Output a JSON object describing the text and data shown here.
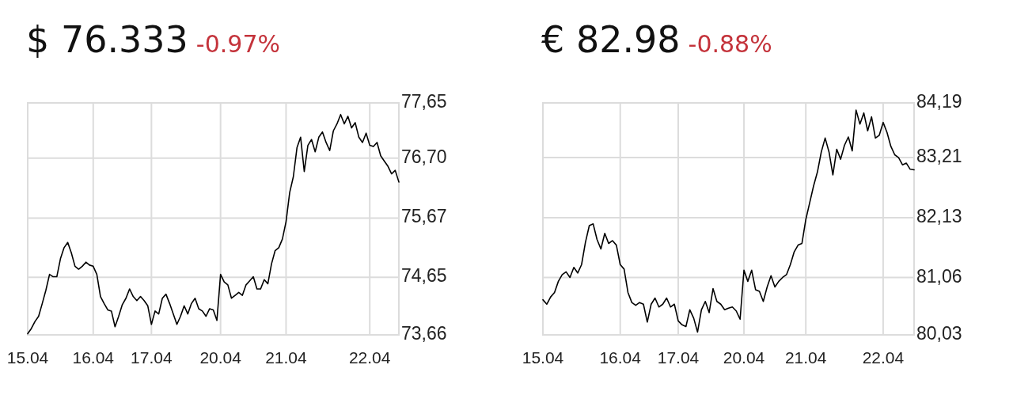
{
  "chart_data": [
    {
      "type": "line",
      "title": "$ 76.333",
      "subtitle": "-0.97%",
      "grid": true,
      "ylim": [
        73.66,
        77.65
      ],
      "categories": [
        "15.04",
        null,
        null,
        null,
        null,
        null,
        null,
        null,
        null,
        null,
        null,
        null,
        null,
        null,
        null,
        null,
        null,
        null,
        "16.04",
        null,
        null,
        null,
        null,
        null,
        null,
        null,
        null,
        null,
        null,
        null,
        null,
        null,
        null,
        null,
        "17.04",
        null,
        null,
        null,
        null,
        null,
        null,
        null,
        null,
        null,
        null,
        null,
        null,
        null,
        null,
        null,
        null,
        null,
        null,
        "20.04",
        null,
        null,
        null,
        null,
        null,
        null,
        null,
        null,
        null,
        null,
        null,
        null,
        null,
        null,
        null,
        null,
        null,
        "21.04",
        null,
        null,
        null,
        null,
        null,
        null,
        null,
        null,
        null,
        null,
        null,
        null,
        null,
        null,
        null,
        null,
        null,
        null,
        null,
        null,
        null,
        null,
        "22.04",
        null,
        null,
        null,
        null,
        null,
        null,
        null,
        null
      ],
      "yticks": [
        {
          "value": 73.66,
          "label": "73,66"
        },
        {
          "value": 74.65,
          "label": "74,65"
        },
        {
          "value": 75.67,
          "label": "75,67"
        },
        {
          "value": 76.7,
          "label": "76,70"
        },
        {
          "value": 77.65,
          "label": "77,65"
        }
      ],
      "series": [
        {
          "color": "#000000",
          "values": [
            73.68,
            73.77,
            73.89,
            73.98,
            74.2,
            74.43,
            74.7,
            74.66,
            74.66,
            74.97,
            75.16,
            75.25,
            75.07,
            74.84,
            74.79,
            74.84,
            74.91,
            74.86,
            74.84,
            74.7,
            74.32,
            74.2,
            74.09,
            74.07,
            73.8,
            73.98,
            74.18,
            74.29,
            74.45,
            74.32,
            74.25,
            74.32,
            74.25,
            74.16,
            73.84,
            74.07,
            74.02,
            74.29,
            74.36,
            74.2,
            74.02,
            73.84,
            73.98,
            74.16,
            74.02,
            74.2,
            74.29,
            74.11,
            74.07,
            73.98,
            74.11,
            74.09,
            73.91,
            74.7,
            74.57,
            74.52,
            74.29,
            74.34,
            74.39,
            74.34,
            74.52,
            74.59,
            74.66,
            74.45,
            74.45,
            74.61,
            74.54,
            74.88,
            75.11,
            75.16,
            75.31,
            75.61,
            76.11,
            76.38,
            76.88,
            77.06,
            76.47,
            76.92,
            77.02,
            76.81,
            77.06,
            77.15,
            76.97,
            76.83,
            77.17,
            77.29,
            77.45,
            77.29,
            77.42,
            77.22,
            77.31,
            77.06,
            76.97,
            77.13,
            76.92,
            76.9,
            76.97,
            76.74,
            76.65,
            76.56,
            76.43,
            76.49,
            76.29
          ]
        }
      ]
    },
    {
      "type": "line",
      "title": "€ 82.98",
      "subtitle": "-0.88%",
      "grid": true,
      "ylim": [
        80.03,
        84.19
      ],
      "categories": [
        "15.04",
        null,
        null,
        null,
        null,
        null,
        null,
        null,
        null,
        null,
        null,
        null,
        null,
        null,
        null,
        null,
        null,
        null,
        null,
        null,
        "16.04",
        null,
        null,
        null,
        null,
        null,
        null,
        null,
        null,
        null,
        null,
        null,
        null,
        null,
        null,
        "17.04",
        null,
        null,
        null,
        null,
        null,
        null,
        null,
        null,
        null,
        null,
        null,
        null,
        null,
        null,
        null,
        null,
        "20.04",
        null,
        null,
        null,
        null,
        null,
        null,
        null,
        null,
        null,
        null,
        null,
        null,
        null,
        null,
        null,
        "21.04",
        null,
        null,
        null,
        null,
        null,
        null,
        null,
        null,
        null,
        null,
        null,
        null,
        null,
        null,
        null,
        null,
        null,
        null,
        null,
        "22.04",
        null,
        null,
        null,
        null,
        null,
        null,
        null,
        null
      ],
      "yticks": [
        {
          "value": 80.03,
          "label": "80,03"
        },
        {
          "value": 81.06,
          "label": "81,06"
        },
        {
          "value": 82.13,
          "label": "82,13"
        },
        {
          "value": 83.21,
          "label": "83,21"
        },
        {
          "value": 84.19,
          "label": "84,19"
        }
      ],
      "series": [
        {
          "color": "#000000",
          "values": [
            80.66,
            80.58,
            80.71,
            80.79,
            80.99,
            81.11,
            81.16,
            81.06,
            81.24,
            81.14,
            81.29,
            81.69,
            81.99,
            82.02,
            81.74,
            81.57,
            81.85,
            81.67,
            81.72,
            81.64,
            81.29,
            81.21,
            80.79,
            80.61,
            80.56,
            80.61,
            80.58,
            80.26,
            80.58,
            80.69,
            80.53,
            80.58,
            80.69,
            80.53,
            80.58,
            80.28,
            80.21,
            80.18,
            80.48,
            80.33,
            80.08,
            80.48,
            80.63,
            80.43,
            80.86,
            80.63,
            80.58,
            80.48,
            80.51,
            80.53,
            80.46,
            80.31,
            81.19,
            80.99,
            81.19,
            80.84,
            80.81,
            80.63,
            80.89,
            81.09,
            80.89,
            80.99,
            81.06,
            81.11,
            81.29,
            81.52,
            81.64,
            81.67,
            82.1,
            82.4,
            82.7,
            82.95,
            83.31,
            83.56,
            83.31,
            82.9,
            83.36,
            83.18,
            83.43,
            83.58,
            83.33,
            84.06,
            83.81,
            84.01,
            83.69,
            83.94,
            83.56,
            83.61,
            83.84,
            83.66,
            83.41,
            83.26,
            83.21,
            83.08,
            83.11,
            83.0,
            82.99
          ]
        }
      ]
    }
  ]
}
